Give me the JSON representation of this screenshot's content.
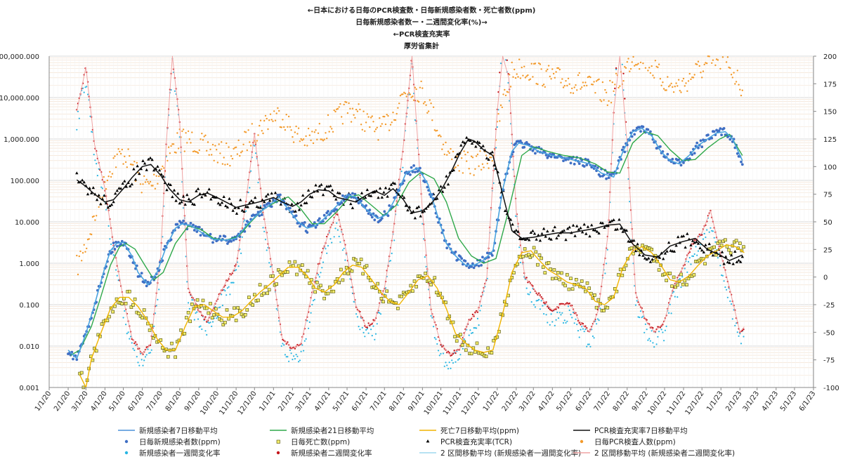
{
  "chart_data": {
    "type": "line",
    "title": [
      "←日本における日毎のPCR検査数・日毎新規感染者数・死亡者数(ppm)",
      "日毎新規感染者数ー・二週間変化率(%)→",
      "←PCR検査充実率",
      "厚労省集計"
    ],
    "left_axis": {
      "scale": "log",
      "range": [
        0.001,
        100000
      ],
      "tick_labels": [
        "100,000.000",
        "10,000.000",
        "1,000.000",
        "100.000",
        "10.000",
        "1.000",
        "0.100",
        "0.010",
        "0.001"
      ]
    },
    "right_axis": {
      "range": [
        -100,
        200
      ],
      "tick_labels": [
        "200",
        "175",
        "150",
        "125",
        "100",
        "75",
        "50",
        "25",
        "0",
        "-25",
        "-50",
        "-75",
        "-100"
      ]
    },
    "x_axis": {
      "type": "date",
      "tick_labels": [
        "1/1/20",
        "2/1/20",
        "3/1/20",
        "4/1/20",
        "5/1/20",
        "6/1/20",
        "7/1/20",
        "8/1/20",
        "9/1/20",
        "10/1/20",
        "11/1/20",
        "12/1/20",
        "1/1/21",
        "2/1/21",
        "3/1/21",
        "4/1/21",
        "5/1/21",
        "6/1/21",
        "7/1/21",
        "8/1/21",
        "9/1/21",
        "10/1/21",
        "11/1/21",
        "12/1/21",
        "1/1/22",
        "2/1/22",
        "3/1/22",
        "4/1/22",
        "5/1/22",
        "6/1/22",
        "7/1/22",
        "8/1/22",
        "9/1/22",
        "10/1/22",
        "11/1/22",
        "12/1/22",
        "1/1/23",
        "2/1/23",
        "3/1/23",
        "4/1/23",
        "5/1/23",
        "6/1/23"
      ]
    },
    "grid": true,
    "legend_placement": "bottom",
    "legend": [
      {
        "label": "新規感染者7日移動平均",
        "kind": "line",
        "color": "#4a90d9"
      },
      {
        "label": "新規感染者21日移動平均",
        "kind": "line",
        "color": "#2ea84a"
      },
      {
        "label": "死亡7日移動平均(ppm)",
        "kind": "line",
        "color": "#f0b400"
      },
      {
        "label": "PCR検査充実率7日移動平均",
        "kind": "line",
        "color": "#111111"
      },
      {
        "label": "日毎新規感染者数(ppm)",
        "kind": "dot",
        "color": "#3f6fc4"
      },
      {
        "label": "日毎死亡数(ppm)",
        "kind": "square",
        "color": "#c8c200"
      },
      {
        "label": "PCR検査充実率(TCR)",
        "kind": "triangle",
        "color": "#000000"
      },
      {
        "label": "日毎PCR検査人数(ppm)",
        "kind": "dot",
        "color": "#f39a2b"
      },
      {
        "label": "新規感染者一週間変化率",
        "kind": "dot",
        "color": "#29b6e3"
      },
      {
        "label": "新規感染者二週間変化率",
        "kind": "dot",
        "color": "#c4161c"
      },
      {
        "label": "2 区間移動平均 (新規感染者一週間変化率)",
        "kind": "line",
        "color": "#9fd8ef"
      },
      {
        "label": "2 区間移動平均 (新規感染者二週間変化率)",
        "kind": "line",
        "color": "#f0a3a3"
      }
    ],
    "series": [
      {
        "name": "新規感染者7日移動平均",
        "axis": "left",
        "x": [
          "2020-02-01",
          "2020-02-15",
          "2020-03-01",
          "2020-03-15",
          "2020-04-01",
          "2020-04-10",
          "2020-04-20",
          "2020-05-01",
          "2020-05-15",
          "2020-05-25",
          "2020-06-10",
          "2020-06-25",
          "2020-07-10",
          "2020-07-25",
          "2020-08-05",
          "2020-08-20",
          "2020-09-10",
          "2020-09-25",
          "2020-10-15",
          "2020-11-01",
          "2020-11-20",
          "2020-12-10",
          "2020-12-25",
          "2021-01-10",
          "2021-01-25",
          "2021-02-10",
          "2021-02-25",
          "2021-03-10",
          "2021-03-25",
          "2021-04-15",
          "2021-05-01",
          "2021-05-15",
          "2021-06-01",
          "2021-06-20",
          "2021-07-05",
          "2021-07-20",
          "2021-08-05",
          "2021-08-25",
          "2021-09-10",
          "2021-09-25",
          "2021-10-10",
          "2021-10-25",
          "2021-11-10",
          "2021-11-25",
          "2021-12-10",
          "2021-12-25",
          "2022-01-10",
          "2022-01-25",
          "2022-02-05",
          "2022-02-20",
          "2022-03-10",
          "2022-04-01",
          "2022-04-20",
          "2022-05-10",
          "2022-06-01",
          "2022-06-20",
          "2022-07-10",
          "2022-07-25",
          "2022-08-10",
          "2022-08-25",
          "2022-09-10",
          "2022-09-25",
          "2022-10-10",
          "2022-10-25",
          "2022-11-10",
          "2022-11-25",
          "2022-12-10",
          "2022-12-25",
          "2023-01-08",
          "2023-01-20",
          "2023-02-05"
        ],
        "y": [
          0.008,
          0.005,
          0.02,
          0.1,
          0.8,
          2.0,
          3.0,
          3.2,
          1.5,
          0.6,
          0.3,
          0.6,
          2.5,
          7.0,
          9.0,
          8.0,
          5.0,
          3.8,
          3.6,
          4.0,
          9.0,
          17.0,
          25.0,
          40.0,
          20.0,
          10.0,
          7.0,
          8.0,
          12.0,
          25.0,
          45.0,
          40.0,
          20.0,
          12.0,
          15.0,
          40.0,
          150.0,
          200.0,
          80.0,
          15.0,
          3.0,
          1.5,
          0.9,
          0.9,
          1.2,
          2.0,
          60.0,
          500.0,
          800.0,
          700.0,
          500.0,
          400.0,
          350.0,
          300.0,
          250.0,
          150.0,
          120.0,
          500.0,
          1500.0,
          1800.0,
          1200.0,
          500.0,
          300.0,
          250.0,
          400.0,
          700.0,
          1000.0,
          1400.0,
          1500.0,
          1000.0,
          300.0
        ]
      },
      {
        "name": "新規感染者21日移動平均",
        "axis": "left",
        "x": [
          "2020-02-05",
          "2020-02-20",
          "2020-03-10",
          "2020-03-25",
          "2020-04-10",
          "2020-04-25",
          "2020-05-05",
          "2020-05-20",
          "2020-06-05",
          "2020-06-20",
          "2020-07-05",
          "2020-07-25",
          "2020-08-15",
          "2020-09-05",
          "2020-09-25",
          "2020-10-15",
          "2020-11-05",
          "2020-11-25",
          "2020-12-15",
          "2021-01-05",
          "2021-01-25",
          "2021-02-15",
          "2021-03-05",
          "2021-03-25",
          "2021-04-15",
          "2021-05-05",
          "2021-05-20",
          "2021-06-10",
          "2021-06-30",
          "2021-07-20",
          "2021-08-10",
          "2021-08-30",
          "2021-09-20",
          "2021-10-10",
          "2021-10-30",
          "2021-11-20",
          "2021-12-10",
          "2021-12-30",
          "2022-01-20",
          "2022-02-10",
          "2022-03-01",
          "2022-03-25",
          "2022-04-20",
          "2022-05-15",
          "2022-06-10",
          "2022-06-30",
          "2022-07-20",
          "2022-08-10",
          "2022-08-30",
          "2022-09-20",
          "2022-10-10",
          "2022-10-30",
          "2022-11-20",
          "2022-12-10",
          "2022-12-30",
          "2023-01-15",
          "2023-02-05"
        ],
        "y": [
          0.006,
          0.008,
          0.03,
          0.15,
          0.9,
          2.5,
          3.0,
          2.2,
          0.9,
          0.4,
          0.6,
          3.0,
          8.0,
          6.5,
          4.0,
          3.6,
          4.5,
          10.0,
          20.0,
          30.0,
          40.0,
          20.0,
          9.0,
          9.0,
          18.0,
          40.0,
          45.0,
          25.0,
          14.0,
          25.0,
          90.0,
          160.0,
          110.0,
          30.0,
          4.0,
          1.5,
          1.0,
          1.3,
          20.0,
          400.0,
          650.0,
          500.0,
          400.0,
          350.0,
          250.0,
          160.0,
          150.0,
          800.0,
          1500.0,
          1200.0,
          550.0,
          300.0,
          320.0,
          600.0,
          1000.0,
          1300.0,
          400.0
        ]
      },
      {
        "name": "死亡7日移動平均(ppm)",
        "axis": "left",
        "x": [
          "2020-02-20",
          "2020-03-01",
          "2020-03-10",
          "2020-03-25",
          "2020-04-10",
          "2020-04-25",
          "2020-05-10",
          "2020-05-25",
          "2020-06-10",
          "2020-06-25",
          "2020-07-10",
          "2020-07-25",
          "2020-08-10",
          "2020-08-25",
          "2020-09-10",
          "2020-09-25",
          "2020-10-10",
          "2020-10-25",
          "2020-11-10",
          "2020-11-25",
          "2020-12-10",
          "2020-12-25",
          "2021-01-10",
          "2021-01-25",
          "2021-02-10",
          "2021-02-25",
          "2021-03-10",
          "2021-03-25",
          "2021-04-10",
          "2021-04-25",
          "2021-05-10",
          "2021-05-25",
          "2021-06-10",
          "2021-06-25",
          "2021-07-10",
          "2021-07-25",
          "2021-08-10",
          "2021-08-25",
          "2021-09-10",
          "2021-09-25",
          "2021-10-10",
          "2021-10-25",
          "2021-11-10",
          "2021-11-25",
          "2021-12-10",
          "2021-12-25",
          "2022-01-10",
          "2022-01-25",
          "2022-02-10",
          "2022-02-25",
          "2022-03-10",
          "2022-03-25",
          "2022-04-10",
          "2022-04-25",
          "2022-05-10",
          "2022-05-25",
          "2022-06-10",
          "2022-06-25",
          "2022-07-10",
          "2022-07-25",
          "2022-08-10",
          "2022-08-25",
          "2022-09-10",
          "2022-09-25",
          "2022-10-10",
          "2022-10-25",
          "2022-11-10",
          "2022-11-25",
          "2022-12-10",
          "2022-12-25",
          "2023-01-10",
          "2023-01-25",
          "2023-02-08"
        ],
        "y": [
          0.002,
          0.001,
          0.005,
          0.02,
          0.08,
          0.15,
          0.15,
          0.09,
          0.04,
          0.015,
          0.008,
          0.008,
          0.03,
          0.09,
          0.1,
          0.07,
          0.05,
          0.05,
          0.07,
          0.12,
          0.2,
          0.3,
          0.5,
          0.8,
          0.8,
          0.5,
          0.25,
          0.2,
          0.3,
          0.6,
          0.9,
          0.8,
          0.4,
          0.2,
          0.12,
          0.1,
          0.2,
          0.4,
          0.5,
          0.25,
          0.08,
          0.02,
          0.012,
          0.008,
          0.007,
          0.008,
          0.06,
          0.6,
          1.8,
          2.0,
          1.2,
          0.7,
          0.5,
          0.35,
          0.3,
          0.25,
          0.12,
          0.1,
          0.15,
          0.8,
          2.0,
          2.5,
          1.8,
          0.9,
          0.4,
          0.35,
          0.5,
          0.9,
          1.5,
          2.0,
          2.8,
          2.5,
          1.8
        ]
      },
      {
        "name": "PCR検査充実率7日移動平均",
        "axis": "right",
        "x": [
          "2020-02-15",
          "2020-03-01",
          "2020-03-15",
          "2020-04-01",
          "2020-04-15",
          "2020-05-01",
          "2020-05-15",
          "2020-06-01",
          "2020-06-15",
          "2020-07-01",
          "2020-07-15",
          "2020-08-01",
          "2020-08-15",
          "2020-09-01",
          "2020-09-15",
          "2020-10-01",
          "2020-10-15",
          "2020-11-01",
          "2020-11-15",
          "2020-12-01",
          "2020-12-15",
          "2021-01-01",
          "2021-01-15",
          "2021-02-01",
          "2021-02-15",
          "2021-03-01",
          "2021-03-15",
          "2021-04-01",
          "2021-04-15",
          "2021-05-01",
          "2021-05-15",
          "2021-06-01",
          "2021-06-15",
          "2021-07-01",
          "2021-07-15",
          "2021-08-01",
          "2021-08-15",
          "2021-09-01",
          "2021-09-15",
          "2021-10-01",
          "2021-10-15",
          "2021-11-01",
          "2021-11-15",
          "2021-11-25",
          "2021-12-10",
          "2021-12-25",
          "2022-01-10",
          "2022-01-25",
          "2022-02-10",
          "2022-03-01",
          "2022-03-20",
          "2022-04-10",
          "2022-05-01",
          "2022-05-20",
          "2022-06-10",
          "2022-06-30",
          "2022-07-20",
          "2022-08-10",
          "2022-08-30",
          "2022-09-20",
          "2022-10-10",
          "2022-10-30",
          "2022-11-20",
          "2022-12-10",
          "2022-12-30",
          "2023-01-15",
          "2023-02-05"
        ],
        "y": [
          88,
          82,
          75,
          68,
          70,
          80,
          90,
          100,
          102,
          92,
          80,
          70,
          68,
          74,
          76,
          72,
          68,
          63,
          65,
          67,
          69,
          72,
          68,
          64,
          68,
          75,
          79,
          78,
          72,
          70,
          68,
          74,
          78,
          74,
          80,
          70,
          58,
          60,
          66,
          78,
          92,
          112,
          125,
          123,
          115,
          110,
          75,
          42,
          35,
          36,
          38,
          40,
          40,
          42,
          44,
          47,
          48,
          30,
          20,
          18,
          28,
          32,
          35,
          25,
          20,
          15,
          20
        ]
      },
      {
        "name": "新規感染者二週間変化率",
        "axis": "right",
        "x": [
          "2020-02-15",
          "2020-03-01",
          "2020-03-15",
          "2020-04-01",
          "2020-04-15",
          "2020-05-01",
          "2020-05-15",
          "2020-06-01",
          "2020-06-15",
          "2020-07-01",
          "2020-07-10",
          "2020-07-20",
          "2020-08-01",
          "2020-08-15",
          "2020-09-01",
          "2020-09-15",
          "2020-10-01",
          "2020-10-15",
          "2020-11-01",
          "2020-11-15",
          "2020-12-01",
          "2020-12-15",
          "2021-01-01",
          "2021-01-15",
          "2021-02-01",
          "2021-02-15",
          "2021-03-01",
          "2021-03-15",
          "2021-04-01",
          "2021-04-15",
          "2021-05-01",
          "2021-05-15",
          "2021-06-01",
          "2021-06-15",
          "2021-07-01",
          "2021-07-15",
          "2021-08-01",
          "2021-08-15",
          "2021-09-01",
          "2021-09-15",
          "2021-10-01",
          "2021-10-15",
          "2021-11-01",
          "2021-11-15",
          "2021-12-01",
          "2021-12-15",
          "2022-01-01",
          "2022-01-10",
          "2022-01-20",
          "2022-02-01",
          "2022-02-15",
          "2022-03-01",
          "2022-03-15",
          "2022-04-01",
          "2022-04-15",
          "2022-05-01",
          "2022-05-15",
          "2022-06-01",
          "2022-06-15",
          "2022-07-01",
          "2022-07-10",
          "2022-07-20",
          "2022-08-01",
          "2022-08-15",
          "2022-09-01",
          "2022-09-15",
          "2022-10-01",
          "2022-10-15",
          "2022-11-01",
          "2022-11-15",
          "2022-12-01",
          "2022-12-15",
          "2023-01-01",
          "2023-01-15",
          "2023-02-01",
          "2023-02-08"
        ],
        "y": [
          150,
          190,
          120,
          80,
          30,
          -20,
          -55,
          -70,
          -60,
          20,
          120,
          200,
          140,
          -10,
          -30,
          -40,
          -20,
          -5,
          10,
          60,
          130,
          60,
          0,
          -55,
          -65,
          -60,
          -25,
          10,
          40,
          60,
          20,
          -25,
          -45,
          -40,
          -10,
          40,
          120,
          200,
          60,
          -30,
          -60,
          -70,
          -65,
          -40,
          -30,
          0,
          150,
          230,
          180,
          60,
          0,
          -10,
          -20,
          -30,
          -25,
          -25,
          -40,
          -50,
          -30,
          40,
          150,
          250,
          120,
          -15,
          -40,
          -50,
          -40,
          -10,
          10,
          30,
          40,
          60,
          20,
          -10,
          -50,
          -45
        ]
      }
    ]
  }
}
